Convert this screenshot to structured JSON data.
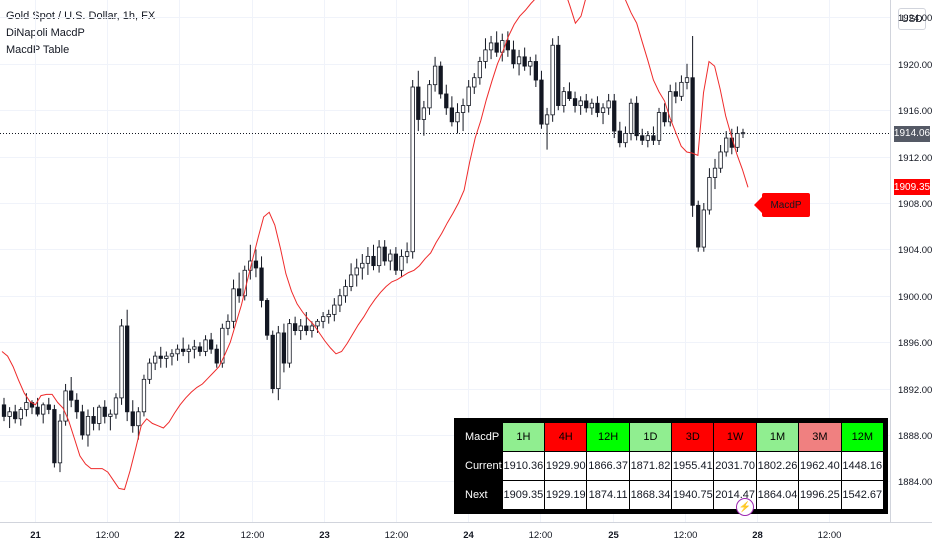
{
  "legend": {
    "symbol": "Gold Spot / U.S. Dollar, 1h, FX",
    "indicator1": "DiNapoli MacdP",
    "indicator2": "MacdP Table"
  },
  "currency_button": "USD",
  "price_tags": {
    "current": "1914.06",
    "macdp": "1909.35"
  },
  "macdp_label": "MacdP",
  "table": {
    "header_label": "MacdP",
    "timeframes": [
      "1H",
      "4H",
      "12H",
      "1D",
      "3D",
      "1W",
      "1M",
      "3M",
      "12M"
    ],
    "rows": [
      {
        "label": "Current",
        "values": [
          "1910.36",
          "1929.90",
          "1866.37",
          "1871.82",
          "1955.41",
          "2031.70",
          "1802.26",
          "1962.40",
          "1448.16"
        ]
      },
      {
        "label": "Next",
        "values": [
          "1909.35",
          "1929.19",
          "1874.11",
          "1868.34",
          "1940.75",
          "2014.47",
          "1864.04",
          "1996.25",
          "1542.67"
        ]
      }
    ]
  },
  "chart_data": {
    "type": "candlestick",
    "symbol": "Gold Spot / U.S. Dollar",
    "interval": "1h",
    "y_ticks": [
      1884,
      1888,
      1892,
      1896,
      1900,
      1904,
      1908,
      1912,
      1916,
      1920,
      1924
    ],
    "ylim": [
      1880.5,
      1925.5
    ],
    "x_ticks": [
      "21",
      "12:00",
      "22",
      "12:00",
      "23",
      "12:00",
      "24",
      "12:00",
      "25",
      "12:00",
      "28",
      "12:00"
    ],
    "last_price": 1914.06,
    "macdp_last": 1909.35,
    "candles": [
      [
        1890.6,
        1891.2,
        1889.2,
        1889.6
      ],
      [
        1889.6,
        1890.4,
        1888.6,
        1890.0
      ],
      [
        1890.0,
        1890.6,
        1889.0,
        1889.4
      ],
      [
        1889.4,
        1890.4,
        1888.8,
        1890.2
      ],
      [
        1890.2,
        1891.6,
        1889.6,
        1890.8
      ],
      [
        1890.8,
        1891.0,
        1889.8,
        1890.4
      ],
      [
        1890.4,
        1891.2,
        1889.6,
        1889.8
      ],
      [
        1889.8,
        1890.8,
        1889.0,
        1890.6
      ],
      [
        1890.6,
        1891.2,
        1889.8,
        1890.2
      ],
      [
        1890.2,
        1890.6,
        1885.2,
        1885.6
      ],
      [
        1885.6,
        1889.8,
        1884.8,
        1889.2
      ],
      [
        1889.2,
        1892.4,
        1888.8,
        1891.8
      ],
      [
        1891.8,
        1893.0,
        1890.4,
        1891.0
      ],
      [
        1891.0,
        1891.6,
        1889.4,
        1890.0
      ],
      [
        1890.0,
        1890.6,
        1887.6,
        1888.0
      ],
      [
        1888.0,
        1890.2,
        1887.0,
        1889.6
      ],
      [
        1889.6,
        1890.4,
        1888.4,
        1889.0
      ],
      [
        1889.0,
        1890.6,
        1888.4,
        1890.4
      ],
      [
        1890.4,
        1891.0,
        1889.0,
        1889.6
      ],
      [
        1889.6,
        1890.2,
        1888.4,
        1889.8
      ],
      [
        1889.8,
        1891.6,
        1889.4,
        1891.2
      ],
      [
        1891.2,
        1898.0,
        1890.6,
        1897.4
      ],
      [
        1897.4,
        1898.8,
        1889.2,
        1890.0
      ],
      [
        1890.0,
        1891.0,
        1888.2,
        1888.8
      ],
      [
        1888.8,
        1890.4,
        1887.6,
        1890.0
      ],
      [
        1890.0,
        1893.2,
        1889.6,
        1892.8
      ],
      [
        1892.8,
        1894.6,
        1892.4,
        1894.2
      ],
      [
        1894.2,
        1895.2,
        1893.6,
        1894.8
      ],
      [
        1894.8,
        1895.6,
        1893.8,
        1894.6
      ],
      [
        1894.6,
        1895.2,
        1893.8,
        1894.8
      ],
      [
        1894.8,
        1895.4,
        1894.0,
        1895.0
      ],
      [
        1895.0,
        1895.8,
        1894.4,
        1895.4
      ],
      [
        1895.4,
        1896.4,
        1894.8,
        1895.2
      ],
      [
        1895.2,
        1895.8,
        1894.2,
        1895.4
      ],
      [
        1895.4,
        1896.2,
        1894.6,
        1895.6
      ],
      [
        1895.6,
        1896.0,
        1894.8,
        1895.2
      ],
      [
        1895.2,
        1896.6,
        1894.8,
        1896.2
      ],
      [
        1896.2,
        1896.8,
        1895.0,
        1895.4
      ],
      [
        1895.4,
        1895.8,
        1893.8,
        1894.2
      ],
      [
        1894.2,
        1897.6,
        1893.8,
        1897.2
      ],
      [
        1897.2,
        1898.4,
        1896.6,
        1897.8
      ],
      [
        1897.8,
        1901.4,
        1897.2,
        1900.6
      ],
      [
        1900.6,
        1902.0,
        1899.4,
        1900.0
      ],
      [
        1900.0,
        1902.6,
        1899.6,
        1902.2
      ],
      [
        1902.2,
        1904.4,
        1901.4,
        1903.0
      ],
      [
        1903.0,
        1904.0,
        1901.6,
        1902.4
      ],
      [
        1902.4,
        1903.4,
        1899.0,
        1899.6
      ],
      [
        1899.6,
        1899.8,
        1896.2,
        1896.6
      ],
      [
        1896.6,
        1897.0,
        1891.6,
        1892.0
      ],
      [
        1892.0,
        1897.4,
        1891.0,
        1896.8
      ],
      [
        1896.8,
        1897.6,
        1893.4,
        1894.2
      ],
      [
        1894.2,
        1898.0,
        1893.8,
        1897.6
      ],
      [
        1897.6,
        1898.2,
        1896.6,
        1897.0
      ],
      [
        1897.0,
        1898.0,
        1896.2,
        1897.4
      ],
      [
        1897.4,
        1898.6,
        1896.6,
        1897.0
      ],
      [
        1897.0,
        1897.8,
        1896.4,
        1897.4
      ],
      [
        1897.4,
        1898.0,
        1896.8,
        1897.8
      ],
      [
        1897.8,
        1898.6,
        1897.2,
        1898.2
      ],
      [
        1898.2,
        1898.8,
        1897.6,
        1898.4
      ],
      [
        1898.4,
        1899.8,
        1897.8,
        1899.2
      ],
      [
        1899.2,
        1900.6,
        1898.6,
        1900.0
      ],
      [
        1900.0,
        1901.4,
        1899.4,
        1900.8
      ],
      [
        1900.8,
        1902.8,
        1900.4,
        1901.8
      ],
      [
        1901.8,
        1903.2,
        1900.8,
        1902.4
      ],
      [
        1902.4,
        1903.6,
        1901.4,
        1902.8
      ],
      [
        1902.8,
        1904.2,
        1901.8,
        1903.4
      ],
      [
        1903.4,
        1904.4,
        1902.2,
        1902.6
      ],
      [
        1902.6,
        1904.8,
        1902.0,
        1904.2
      ],
      [
        1904.2,
        1904.8,
        1902.6,
        1903.0
      ],
      [
        1903.0,
        1904.0,
        1902.2,
        1903.6
      ],
      [
        1903.6,
        1904.2,
        1901.8,
        1902.2
      ],
      [
        1902.2,
        1904.0,
        1901.6,
        1903.4
      ],
      [
        1903.4,
        1904.6,
        1902.8,
        1903.8
      ],
      [
        1903.8,
        1918.6,
        1903.2,
        1918.0
      ],
      [
        1918.0,
        1919.4,
        1914.2,
        1915.2
      ],
      [
        1915.2,
        1916.8,
        1913.8,
        1916.2
      ],
      [
        1916.2,
        1918.6,
        1915.6,
        1918.2
      ],
      [
        1918.2,
        1920.6,
        1917.6,
        1919.8
      ],
      [
        1919.8,
        1920.2,
        1917.0,
        1917.4
      ],
      [
        1917.4,
        1918.2,
        1915.6,
        1916.2
      ],
      [
        1916.2,
        1917.2,
        1914.6,
        1915.0
      ],
      [
        1915.0,
        1916.6,
        1914.0,
        1915.8
      ],
      [
        1915.8,
        1917.0,
        1914.2,
        1916.4
      ],
      [
        1916.4,
        1918.6,
        1915.8,
        1918.0
      ],
      [
        1918.0,
        1919.2,
        1917.4,
        1918.8
      ],
      [
        1918.8,
        1920.6,
        1918.2,
        1920.2
      ],
      [
        1920.2,
        1922.2,
        1919.6,
        1921.2
      ],
      [
        1921.2,
        1922.4,
        1920.4,
        1921.8
      ],
      [
        1921.8,
        1922.8,
        1920.6,
        1921.0
      ],
      [
        1921.0,
        1922.6,
        1920.2,
        1922.0
      ],
      [
        1922.0,
        1922.8,
        1920.6,
        1921.2
      ],
      [
        1921.2,
        1922.0,
        1919.6,
        1920.0
      ],
      [
        1920.0,
        1921.2,
        1919.0,
        1920.6
      ],
      [
        1920.6,
        1921.4,
        1919.4,
        1919.8
      ],
      [
        1919.8,
        1920.6,
        1919.0,
        1920.2
      ],
      [
        1920.2,
        1920.8,
        1918.0,
        1918.6
      ],
      [
        1918.6,
        1919.4,
        1914.4,
        1914.8
      ],
      [
        1914.8,
        1916.2,
        1912.6,
        1915.6
      ],
      [
        1915.6,
        1922.2,
        1915.0,
        1921.6
      ],
      [
        1921.6,
        1922.4,
        1916.0,
        1916.4
      ],
      [
        1916.4,
        1918.0,
        1915.8,
        1917.6
      ],
      [
        1917.6,
        1918.4,
        1916.8,
        1917.0
      ],
      [
        1917.0,
        1917.6,
        1915.8,
        1916.4
      ],
      [
        1916.4,
        1917.2,
        1915.6,
        1916.8
      ],
      [
        1916.8,
        1917.4,
        1915.8,
        1916.2
      ],
      [
        1916.2,
        1917.0,
        1915.6,
        1916.6
      ],
      [
        1916.6,
        1917.2,
        1915.4,
        1915.8
      ],
      [
        1915.8,
        1916.6,
        1914.8,
        1916.2
      ],
      [
        1916.2,
        1917.4,
        1915.6,
        1916.8
      ],
      [
        1916.8,
        1917.4,
        1913.6,
        1914.2
      ],
      [
        1914.2,
        1915.0,
        1912.8,
        1913.2
      ],
      [
        1913.2,
        1914.6,
        1912.8,
        1914.0
      ],
      [
        1914.0,
        1917.0,
        1913.4,
        1916.6
      ],
      [
        1916.6,
        1917.2,
        1913.4,
        1913.8
      ],
      [
        1913.8,
        1914.4,
        1913.0,
        1913.4
      ],
      [
        1913.4,
        1914.2,
        1912.8,
        1913.8
      ],
      [
        1913.8,
        1914.6,
        1913.0,
        1913.4
      ],
      [
        1913.4,
        1916.2,
        1913.0,
        1915.8
      ],
      [
        1915.8,
        1916.6,
        1914.6,
        1915.0
      ],
      [
        1915.0,
        1918.2,
        1914.6,
        1917.6
      ],
      [
        1917.6,
        1918.4,
        1916.6,
        1917.2
      ],
      [
        1917.2,
        1919.0,
        1916.8,
        1918.4
      ],
      [
        1918.4,
        1920.0,
        1917.8,
        1918.8
      ],
      [
        1918.8,
        1922.4,
        1906.8,
        1907.8
      ],
      [
        1907.8,
        1908.2,
        1903.8,
        1904.2
      ],
      [
        1904.2,
        1908.0,
        1903.8,
        1907.4
      ],
      [
        1907.4,
        1911.0,
        1907.0,
        1910.2
      ],
      [
        1910.2,
        1911.8,
        1909.2,
        1911.0
      ],
      [
        1911.0,
        1913.0,
        1910.6,
        1912.4
      ],
      [
        1912.4,
        1914.2,
        1912.0,
        1913.6
      ],
      [
        1913.6,
        1914.4,
        1912.2,
        1912.8
      ],
      [
        1912.8,
        1914.6,
        1912.4,
        1914.0
      ],
      [
        1914.0,
        1914.4,
        1913.6,
        1914.06
      ]
    ],
    "macdp_series": [
      1895.2,
      1894.8,
      1893.9,
      1892.7,
      1891.6,
      1890.9,
      1890.6,
      1891.4,
      1891.5,
      1891.5,
      1890.8,
      1890.3,
      1889.2,
      1887.7,
      1886.2,
      1885.5,
      1885.1,
      1885.1,
      1885.1,
      1884.8,
      1884.1,
      1883.4,
      1883.3,
      1884.9,
      1886.8,
      1888.8,
      1889.4,
      1889.0,
      1888.8,
      1888.6,
      1889.1,
      1889.9,
      1890.6,
      1891.2,
      1891.7,
      1892.1,
      1892.4,
      1892.9,
      1893.4,
      1893.9,
      1894.9,
      1896.0,
      1897.6,
      1899.2,
      1901.2,
      1903.1,
      1905.0,
      1906.8,
      1907.2,
      1906.1,
      1904.1,
      1901.9,
      1900.4,
      1899.3,
      1898.6,
      1898.0,
      1897.5,
      1896.8,
      1896.1,
      1895.5,
      1895.0,
      1895.2,
      1895.9,
      1896.7,
      1897.5,
      1898.2,
      1899.0,
      1899.7,
      1900.3,
      1900.8,
      1901.2,
      1901.4,
      1901.7,
      1902.0,
      1902.2,
      1902.6,
      1903.2,
      1903.7,
      1904.6,
      1905.4,
      1906.3,
      1907.1,
      1908.0,
      1909.1,
      1911.5,
      1913.6,
      1915.1,
      1916.9,
      1918.5,
      1920.0,
      1921.1,
      1922.4,
      1923.4,
      1924.1,
      1924.6,
      1925.2,
      1925.7,
      1926.3,
      1927.6,
      1929.2,
      1928.5,
      1926.4,
      1925.0,
      1923.5,
      1924.1,
      1925.9,
      1928.5,
      1929.5,
      1929.7,
      1929.2,
      1928.1,
      1926.9,
      1925.5,
      1924.4,
      1923.5,
      1921.9,
      1920.3,
      1918.6,
      1917.6,
      1916.8,
      1915.3,
      1914.1,
      1912.9,
      1912.4,
      1912.3,
      1912.1,
      1917.5,
      1920.2,
      1919.8,
      1917.8,
      1915.5,
      1913.8,
      1912.2,
      1910.9,
      1909.35
    ]
  }
}
